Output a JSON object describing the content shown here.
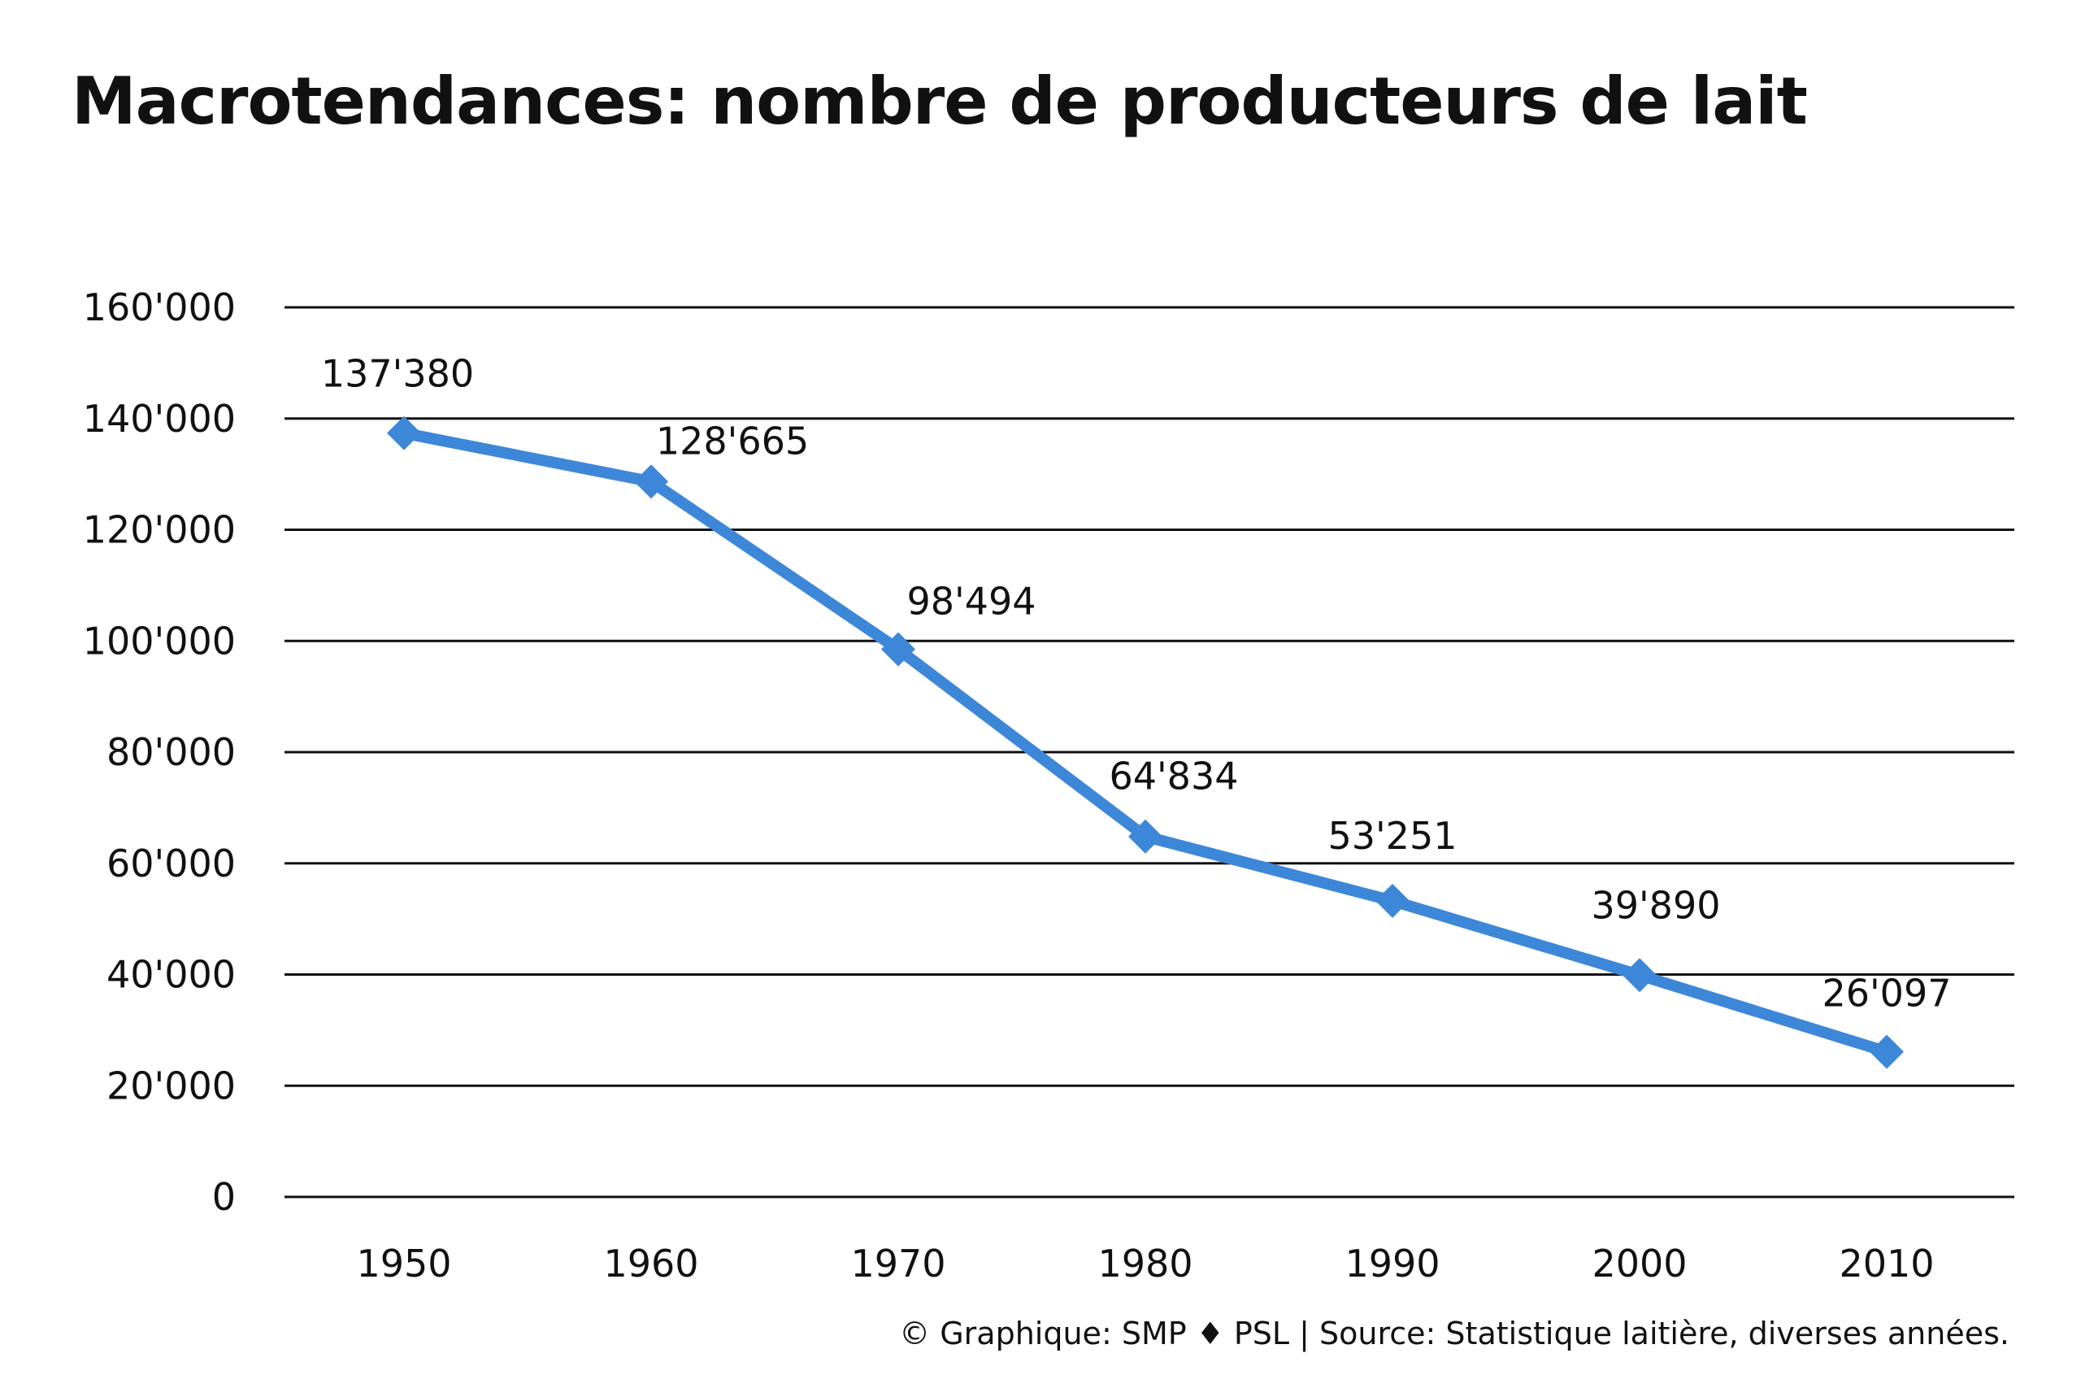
{
  "footer": "© Graphique: SMP ♦ PSL | Source: Statistique laitière, diverses années.",
  "colors": {
    "line": "#3d87d8",
    "grid": "#111111",
    "text": "#111111"
  },
  "chart_data": {
    "type": "line",
    "title": "Macrotendances: nombre de producteurs de lait",
    "xlabel": "",
    "ylabel": "",
    "x": [
      "1950",
      "1960",
      "1970",
      "1980",
      "1990",
      "2000",
      "2010"
    ],
    "series": [
      {
        "values": [
          137380,
          128665,
          98494,
          64834,
          53251,
          39890,
          26097
        ],
        "labels": [
          "137'380",
          "128'665",
          "98'494",
          "64'834",
          "53'251",
          "39'890",
          "26'097"
        ],
        "marker": "diamond"
      }
    ],
    "ylim": [
      0,
      160000
    ],
    "yticks": [
      0,
      20000,
      40000,
      60000,
      80000,
      100000,
      120000,
      140000,
      160000
    ],
    "ytick_labels": [
      "0",
      "20'000",
      "40'000",
      "60'000",
      "80'000",
      "100'000",
      "120'000",
      "140'000",
      "160'000"
    ],
    "grid": true,
    "legend": "none"
  }
}
